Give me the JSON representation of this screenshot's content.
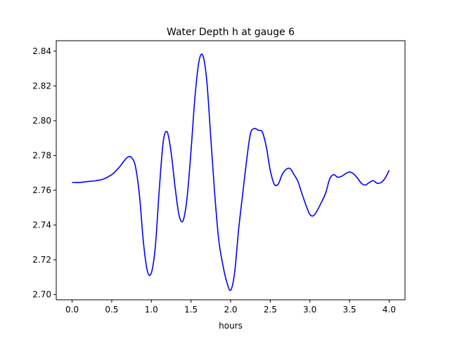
{
  "chart_data": {
    "type": "line",
    "title": "Water Depth h at gauge 6",
    "xlabel": "hours",
    "ylabel": "",
    "xlim": [
      -0.2,
      4.2
    ],
    "ylim": [
      2.697,
      2.846
    ],
    "xticks": [
      0.0,
      0.5,
      1.0,
      1.5,
      2.0,
      2.5,
      3.0,
      3.5,
      4.0
    ],
    "xtick_labels": [
      "0.0",
      "0.5",
      "1.0",
      "1.5",
      "2.0",
      "2.5",
      "3.0",
      "3.5",
      "4.0"
    ],
    "yticks": [
      2.7,
      2.72,
      2.74,
      2.76,
      2.78,
      2.8,
      2.82,
      2.84
    ],
    "ytick_labels": [
      "2.70",
      "2.72",
      "2.74",
      "2.76",
      "2.78",
      "2.80",
      "2.82",
      "2.84"
    ],
    "grid": false,
    "series": [
      {
        "color": "#0000ff",
        "x": [
          0.0,
          0.1,
          0.2,
          0.3,
          0.4,
          0.5,
          0.55,
          0.6,
          0.65,
          0.7,
          0.75,
          0.8,
          0.85,
          0.9,
          0.95,
          1.0,
          1.05,
          1.1,
          1.15,
          1.2,
          1.25,
          1.3,
          1.35,
          1.4,
          1.45,
          1.5,
          1.55,
          1.6,
          1.65,
          1.7,
          1.75,
          1.8,
          1.85,
          1.9,
          1.95,
          2.0,
          2.05,
          2.1,
          2.15,
          2.2,
          2.25,
          2.3,
          2.35,
          2.4,
          2.45,
          2.5,
          2.55,
          2.6,
          2.65,
          2.7,
          2.75,
          2.8,
          2.85,
          2.9,
          2.95,
          3.0,
          3.05,
          3.1,
          3.15,
          3.2,
          3.25,
          3.3,
          3.35,
          3.4,
          3.45,
          3.5,
          3.55,
          3.6,
          3.65,
          3.7,
          3.75,
          3.8,
          3.85,
          3.9,
          3.95,
          4.0
        ],
        "y": [
          2.7645,
          2.7645,
          2.765,
          2.7655,
          2.7665,
          2.769,
          2.771,
          2.7735,
          2.7765,
          2.779,
          2.7788,
          2.7735,
          2.757,
          2.73,
          2.7135,
          2.7125,
          2.7275,
          2.7605,
          2.788,
          2.7935,
          2.7815,
          2.7615,
          2.7455,
          2.7425,
          2.7555,
          2.7825,
          2.8135,
          2.834,
          2.8375,
          2.8225,
          2.79,
          2.7575,
          2.7315,
          2.7175,
          2.7075,
          2.7025,
          2.7125,
          2.737,
          2.757,
          2.7765,
          2.7925,
          2.7955,
          2.7945,
          2.7935,
          2.785,
          2.7715,
          2.7635,
          2.7635,
          2.769,
          2.772,
          2.7725,
          2.769,
          2.765,
          2.758,
          2.7515,
          2.746,
          2.7455,
          2.749,
          2.7535,
          2.7585,
          2.7665,
          2.769,
          2.7675,
          2.768,
          2.7695,
          2.7705,
          2.7695,
          2.767,
          2.764,
          2.763,
          2.7645,
          2.7655,
          2.764,
          2.7645,
          2.767,
          2.7715
        ]
      }
    ]
  }
}
